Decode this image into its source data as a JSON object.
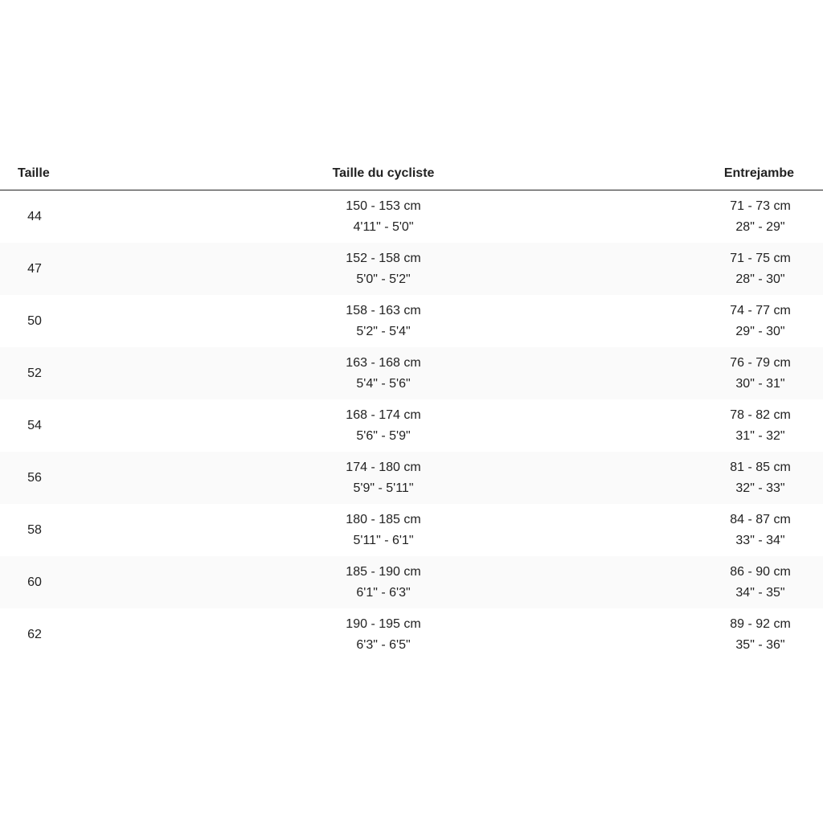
{
  "headers": [
    "Taille",
    "Taille du cycliste",
    "Entrejambe"
  ],
  "rows": [
    {
      "size": "44",
      "height_cm": "150 - 153 cm",
      "height_ft": "4'11\" - 5'0\"",
      "inseam_cm": "71 - 73 cm",
      "inseam_in": "28\" - 29\""
    },
    {
      "size": "47",
      "height_cm": "152 - 158 cm",
      "height_ft": "5'0\" - 5'2\"",
      "inseam_cm": "71 - 75 cm",
      "inseam_in": "28\" - 30\""
    },
    {
      "size": "50",
      "height_cm": "158 - 163 cm",
      "height_ft": "5'2\" - 5'4\"",
      "inseam_cm": "74 - 77 cm",
      "inseam_in": "29\" - 30\""
    },
    {
      "size": "52",
      "height_cm": "163 - 168 cm",
      "height_ft": "5'4\" - 5'6\"",
      "inseam_cm": "76 - 79 cm",
      "inseam_in": "30\" - 31\""
    },
    {
      "size": "54",
      "height_cm": "168 - 174 cm",
      "height_ft": "5'6\" - 5'9\"",
      "inseam_cm": "78 - 82 cm",
      "inseam_in": "31\" - 32\""
    },
    {
      "size": "56",
      "height_cm": "174 - 180 cm",
      "height_ft": "5'9\" - 5'11\"",
      "inseam_cm": "81 - 85 cm",
      "inseam_in": "32\" - 33\""
    },
    {
      "size": "58",
      "height_cm": "180 - 185 cm",
      "height_ft": "5'11\" - 6'1\"",
      "inseam_cm": "84 - 87 cm",
      "inseam_in": "33\" - 34\""
    },
    {
      "size": "60",
      "height_cm": "185 - 190 cm",
      "height_ft": "6'1\" - 6'3\"",
      "inseam_cm": "86 - 90 cm",
      "inseam_in": "34\" - 35\""
    },
    {
      "size": "62",
      "height_cm": "190 - 195 cm",
      "height_ft": "6'3\" - 6'5\"",
      "inseam_cm": "89 - 92 cm",
      "inseam_in": "35\" - 36\""
    }
  ]
}
